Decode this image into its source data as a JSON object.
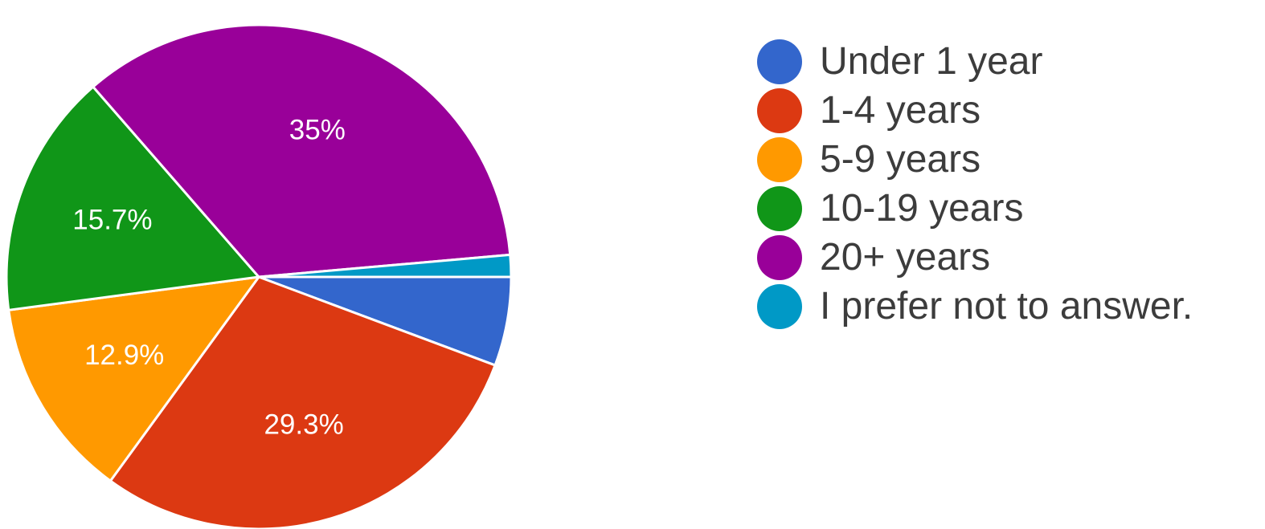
{
  "chart_data": {
    "type": "pie",
    "start_angle_deg": 0,
    "direction": "clockwise",
    "legend_position": "right",
    "slices": [
      {
        "label": "Under 1 year",
        "value": 5.7,
        "value_label": "",
        "color": "#3366cc"
      },
      {
        "label": "1-4 years",
        "value": 29.3,
        "value_label": "29.3%",
        "color": "#dc3912"
      },
      {
        "label": "5-9 years",
        "value": 12.9,
        "value_label": "12.9%",
        "color": "#ff9900"
      },
      {
        "label": "10-19 years",
        "value": 15.7,
        "value_label": "15.7%",
        "color": "#109618"
      },
      {
        "label": "20+ years",
        "value": 35.0,
        "value_label": "35%",
        "color": "#990099"
      },
      {
        "label": "I prefer not to answer.",
        "value": 1.4,
        "value_label": "",
        "color": "#0099c6"
      }
    ]
  }
}
